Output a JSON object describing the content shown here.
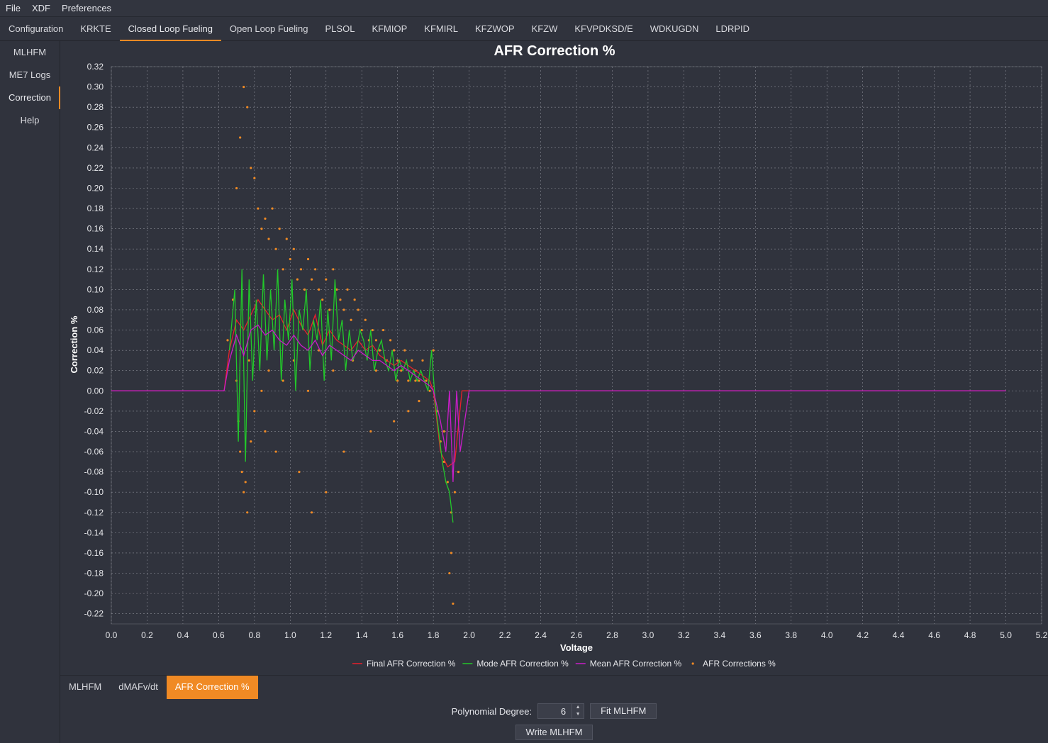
{
  "menu": [
    "File",
    "XDF",
    "Preferences"
  ],
  "top_tabs": [
    "Configuration",
    "KRKTE",
    "Closed Loop Fueling",
    "Open Loop Fueling",
    "PLSOL",
    "KFMIOP",
    "KFMIRL",
    "KFZWOP",
    "KFZW",
    "KFVPDKSD/E",
    "WDKUGDN",
    "LDRPID"
  ],
  "top_tab_active": 2,
  "side_tabs": [
    "MLHFM",
    "ME7 Logs",
    "Correction",
    "Help"
  ],
  "side_tab_active": 2,
  "bottom_tabs": [
    "MLHFM",
    "dMAFv/dt",
    "AFR Correction %"
  ],
  "bottom_tab_active": 2,
  "controls": {
    "poly_label": "Polynomial Degree:",
    "poly_value": "6",
    "fit_label": "Fit MLHFM",
    "write_label": "Write MLHFM"
  },
  "colors": {
    "accent": "#f08a24",
    "final": "#e8202c",
    "mode": "#22c82a",
    "mean": "#c81ec8",
    "scatter": "#f08a24"
  },
  "chart_data": {
    "type": "scatter",
    "title": "AFR Correction %",
    "xlabel": "Voltage",
    "ylabel": "Correction %",
    "xlim": [
      0.0,
      5.2
    ],
    "ylim": [
      -0.23,
      0.32
    ],
    "x_ticks": [
      "0.0",
      "0.2",
      "0.4",
      "0.6",
      "0.8",
      "1.0",
      "1.2",
      "1.4",
      "1.6",
      "1.8",
      "2.0",
      "2.2",
      "2.4",
      "2.6",
      "2.8",
      "3.0",
      "3.2",
      "3.4",
      "3.6",
      "3.8",
      "4.0",
      "4.2",
      "4.4",
      "4.6",
      "4.8",
      "5.0",
      "5.2"
    ],
    "y_ticks": [
      "0.32",
      "0.30",
      "0.28",
      "0.26",
      "0.24",
      "0.22",
      "0.20",
      "0.18",
      "0.16",
      "0.14",
      "0.12",
      "0.10",
      "0.08",
      "0.06",
      "0.04",
      "0.02",
      "0.00",
      "-0.02",
      "-0.04",
      "-0.06",
      "-0.08",
      "-0.10",
      "-0.12",
      "-0.14",
      "-0.16",
      "-0.18",
      "-0.20",
      "-0.22"
    ],
    "grid": true,
    "legend_position": "bottom",
    "series": [
      {
        "name": "Final AFR Correction %",
        "kind": "line",
        "color": "#e8202c",
        "x": [
          0.0,
          0.63,
          0.66,
          0.7,
          0.74,
          0.78,
          0.82,
          0.86,
          0.9,
          0.94,
          0.98,
          1.02,
          1.06,
          1.1,
          1.14,
          1.18,
          1.22,
          1.26,
          1.3,
          1.34,
          1.38,
          1.42,
          1.46,
          1.5,
          1.54,
          1.58,
          1.62,
          1.66,
          1.7,
          1.74,
          1.78,
          1.8,
          1.84,
          1.88,
          1.92,
          1.96,
          2.0,
          5.0
        ],
        "y": [
          0.0,
          0.0,
          0.04,
          0.07,
          0.06,
          0.075,
          0.09,
          0.08,
          0.07,
          0.075,
          0.06,
          0.08,
          0.065,
          0.055,
          0.075,
          0.045,
          0.06,
          0.05,
          0.045,
          0.04,
          0.05,
          0.04,
          0.045,
          0.035,
          0.03,
          0.025,
          0.03,
          0.025,
          0.02,
          0.015,
          0.01,
          0.0,
          -0.06,
          -0.075,
          -0.07,
          0.0,
          0.0,
          0.0
        ]
      },
      {
        "name": "Mode AFR Correction %",
        "kind": "line",
        "color": "#22c82a",
        "x": [
          0.66,
          0.69,
          0.71,
          0.73,
          0.75,
          0.77,
          0.79,
          0.81,
          0.83,
          0.85,
          0.87,
          0.89,
          0.91,
          0.93,
          0.95,
          0.97,
          0.99,
          1.01,
          1.03,
          1.05,
          1.07,
          1.09,
          1.11,
          1.13,
          1.15,
          1.17,
          1.19,
          1.21,
          1.23,
          1.25,
          1.27,
          1.29,
          1.31,
          1.33,
          1.35,
          1.37,
          1.39,
          1.41,
          1.43,
          1.45,
          1.47,
          1.49,
          1.51,
          1.53,
          1.55,
          1.57,
          1.59,
          1.61,
          1.63,
          1.65,
          1.67,
          1.69,
          1.71,
          1.73,
          1.75,
          1.77,
          1.79,
          1.81,
          1.83,
          1.85,
          1.87,
          1.89,
          1.91
        ],
        "y": [
          0.04,
          0.1,
          -0.05,
          0.12,
          -0.07,
          0.11,
          0.01,
          0.09,
          0.02,
          0.115,
          0.03,
          0.1,
          0.04,
          0.12,
          0.01,
          0.09,
          0.05,
          0.11,
          0.0,
          0.08,
          0.06,
          0.1,
          0.02,
          0.07,
          0.05,
          0.09,
          0.01,
          0.08,
          0.03,
          0.11,
          0.05,
          0.07,
          0.02,
          0.06,
          0.03,
          0.04,
          0.06,
          0.05,
          0.03,
          0.06,
          0.02,
          0.04,
          0.05,
          0.03,
          0.02,
          0.04,
          0.01,
          0.03,
          0.02,
          0.03,
          0.01,
          0.02,
          0.01,
          0.02,
          0.01,
          0.0,
          0.04,
          -0.01,
          -0.04,
          -0.07,
          -0.09,
          -0.1,
          -0.13
        ]
      },
      {
        "name": "Mean AFR Correction %",
        "kind": "line",
        "color": "#c81ec8",
        "x": [
          0.0,
          0.63,
          0.66,
          0.7,
          0.74,
          0.78,
          0.82,
          0.86,
          0.9,
          0.94,
          0.98,
          1.02,
          1.06,
          1.1,
          1.14,
          1.18,
          1.22,
          1.26,
          1.3,
          1.34,
          1.38,
          1.42,
          1.46,
          1.5,
          1.54,
          1.58,
          1.62,
          1.66,
          1.7,
          1.74,
          1.78,
          1.8,
          1.84,
          1.87,
          1.89,
          1.91,
          1.93,
          1.95,
          2.0,
          5.0
        ],
        "y": [
          0.0,
          0.0,
          0.03,
          0.055,
          0.035,
          0.06,
          0.065,
          0.055,
          0.06,
          0.05,
          0.045,
          0.055,
          0.045,
          0.04,
          0.05,
          0.035,
          0.045,
          0.04,
          0.035,
          0.03,
          0.04,
          0.035,
          0.03,
          0.03,
          0.025,
          0.02,
          0.025,
          0.02,
          0.015,
          0.01,
          0.005,
          0.0,
          -0.03,
          -0.06,
          0.0,
          -0.09,
          0.0,
          -0.06,
          0.0,
          0.0
        ]
      },
      {
        "name": "AFR Corrections %",
        "kind": "scatter",
        "color": "#f08a24",
        "x": [
          0.65,
          0.68,
          0.7,
          0.72,
          0.74,
          0.76,
          0.78,
          0.8,
          0.82,
          0.84,
          0.86,
          0.88,
          0.9,
          0.92,
          0.94,
          0.96,
          0.98,
          1.0,
          1.02,
          1.04,
          1.06,
          1.08,
          1.1,
          1.12,
          1.14,
          1.16,
          1.18,
          1.2,
          1.22,
          1.24,
          1.26,
          1.28,
          1.3,
          1.32,
          1.34,
          1.36,
          1.38,
          1.4,
          1.42,
          1.44,
          1.46,
          1.48,
          1.5,
          1.52,
          1.54,
          1.56,
          1.58,
          1.6,
          1.62,
          1.64,
          1.66,
          1.68,
          1.7,
          1.72,
          1.74,
          1.76,
          1.78,
          1.8,
          1.82,
          1.84,
          1.86,
          1.88,
          1.9,
          1.92,
          1.94,
          0.72,
          0.74,
          0.76,
          0.73,
          0.71,
          0.78,
          0.8,
          0.75,
          0.86,
          0.92,
          1.05,
          1.12,
          1.2,
          1.3,
          1.45,
          1.58,
          1.66,
          1.72,
          1.9,
          1.91,
          0.7,
          0.77,
          0.84,
          0.88,
          0.96,
          1.02,
          1.1,
          1.16,
          1.24,
          1.35,
          1.48,
          1.6,
          1.7,
          1.86,
          1.89
        ],
        "y": [
          0.05,
          0.09,
          0.2,
          0.25,
          0.3,
          0.28,
          0.22,
          0.21,
          0.18,
          0.16,
          0.17,
          0.15,
          0.18,
          0.14,
          0.16,
          0.12,
          0.15,
          0.13,
          0.14,
          0.11,
          0.12,
          0.1,
          0.13,
          0.11,
          0.12,
          0.1,
          0.09,
          0.11,
          0.08,
          0.12,
          0.1,
          0.09,
          0.08,
          0.1,
          0.07,
          0.09,
          0.08,
          0.06,
          0.07,
          0.05,
          0.06,
          0.05,
          0.04,
          0.06,
          0.03,
          0.05,
          0.04,
          0.03,
          0.02,
          0.04,
          0.01,
          0.03,
          0.02,
          0.01,
          0.03,
          0.01,
          0.0,
          0.04,
          -0.02,
          -0.05,
          -0.07,
          -0.09,
          -0.12,
          -0.1,
          -0.08,
          -0.06,
          -0.1,
          -0.12,
          -0.08,
          -0.03,
          -0.05,
          -0.02,
          -0.09,
          -0.04,
          -0.06,
          -0.08,
          -0.12,
          -0.1,
          -0.06,
          -0.04,
          -0.03,
          -0.02,
          -0.01,
          -0.16,
          -0.21,
          0.01,
          0.03,
          0.0,
          0.02,
          0.01,
          0.03,
          0.0,
          0.04,
          0.02,
          0.03,
          0.02,
          0.01,
          0.01,
          -0.04,
          -0.18
        ]
      }
    ]
  }
}
